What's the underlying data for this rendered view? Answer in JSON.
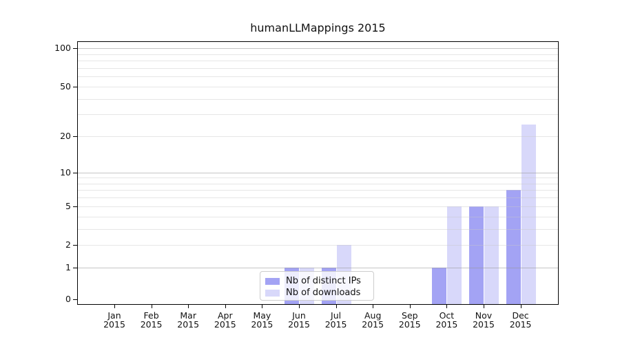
{
  "page": {
    "title": "humanLLMappings 2015"
  },
  "chart_data": {
    "type": "bar",
    "title": "humanLLMappings 2015",
    "categories": [
      "Jan",
      "Feb",
      "Mar",
      "Apr",
      "May",
      "Jun",
      "Jul",
      "Aug",
      "Sep",
      "Oct",
      "Nov",
      "Dec"
    ],
    "category_year": "2015",
    "series": [
      {
        "name": "Nb of distinct IPs",
        "color": "#a3a3f4",
        "values": [
          0,
          0,
          0,
          0,
          0,
          1,
          1,
          0,
          0,
          1,
          5,
          7
        ]
      },
      {
        "name": "Nb of downloads",
        "color": "#d8d8fa",
        "values": [
          0,
          0,
          0,
          0,
          0,
          1,
          2,
          0,
          0,
          5,
          5,
          25
        ]
      }
    ],
    "yscale": "log10(1+x)",
    "ylim": [
      0,
      130
    ],
    "yticks": [
      0,
      1,
      2,
      5,
      10,
      20,
      50,
      100
    ],
    "gridlines": {
      "major": [
        1,
        10,
        100
      ],
      "minor": [
        2,
        3,
        4,
        5,
        6,
        7,
        8,
        9,
        20,
        30,
        40,
        50,
        60,
        70,
        80,
        90
      ]
    },
    "legend_position": "bottom-center",
    "colors": {
      "axis": "#000000",
      "major_grid": "#c9c9c9",
      "minor_grid": "#e8e8e8",
      "background": "#ffffff"
    }
  }
}
